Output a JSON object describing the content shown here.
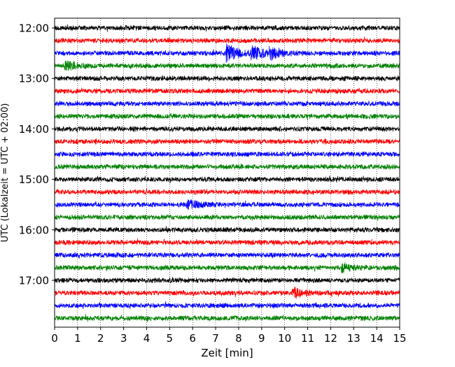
{
  "chart_data": {
    "type": "line",
    "title": "",
    "xlabel": "Zeit  [min]",
    "ylabel": "UTC (Lokalzeit = UTC + 02:00)",
    "xlim": [
      0,
      15
    ],
    "x_ticks": [
      "0",
      "1",
      "2",
      "3",
      "4",
      "5",
      "6",
      "7",
      "8",
      "9",
      "10",
      "11",
      "12",
      "13",
      "14",
      "15"
    ],
    "y_tick_labels": [
      "12:00",
      "13:00",
      "14:00",
      "15:00",
      "16:00",
      "17:00"
    ],
    "grid": "vertical dotted at each minute",
    "row_interval_min": 15,
    "color_cycle": [
      "#000000",
      "#ff0000",
      "#0000ff",
      "#008000"
    ],
    "series": [
      {
        "start": "12:00",
        "color": "#000000"
      },
      {
        "start": "12:15",
        "color": "#ff0000"
      },
      {
        "start": "12:30",
        "color": "#0000ff",
        "events": [
          {
            "t": 7.5,
            "amp": 2.2
          },
          {
            "t": 8.6,
            "amp": 1.6
          },
          {
            "t": 9.4,
            "amp": 1.2
          }
        ]
      },
      {
        "start": "12:45",
        "color": "#008000",
        "events": [
          {
            "t": 0.5,
            "amp": 1.0
          }
        ]
      },
      {
        "start": "13:00",
        "color": "#000000"
      },
      {
        "start": "13:15",
        "color": "#ff0000"
      },
      {
        "start": "13:30",
        "color": "#0000ff"
      },
      {
        "start": "13:45",
        "color": "#008000"
      },
      {
        "start": "14:00",
        "color": "#000000"
      },
      {
        "start": "14:15",
        "color": "#ff0000"
      },
      {
        "start": "14:30",
        "color": "#0000ff"
      },
      {
        "start": "14:45",
        "color": "#008000"
      },
      {
        "start": "15:00",
        "color": "#000000"
      },
      {
        "start": "15:15",
        "color": "#ff0000"
      },
      {
        "start": "15:30",
        "color": "#0000ff",
        "events": [
          {
            "t": 5.8,
            "amp": 1.0
          }
        ]
      },
      {
        "start": "15:45",
        "color": "#008000"
      },
      {
        "start": "16:00",
        "color": "#000000"
      },
      {
        "start": "16:15",
        "color": "#ff0000"
      },
      {
        "start": "16:30",
        "color": "#0000ff"
      },
      {
        "start": "16:45",
        "color": "#008000",
        "events": [
          {
            "t": 12.5,
            "amp": 0.9
          }
        ]
      },
      {
        "start": "17:00",
        "color": "#000000"
      },
      {
        "start": "17:15",
        "color": "#ff0000",
        "events": [
          {
            "t": 10.4,
            "amp": 1.0
          }
        ]
      },
      {
        "start": "17:30",
        "color": "#0000ff"
      },
      {
        "start": "17:45",
        "color": "#008000"
      }
    ]
  }
}
